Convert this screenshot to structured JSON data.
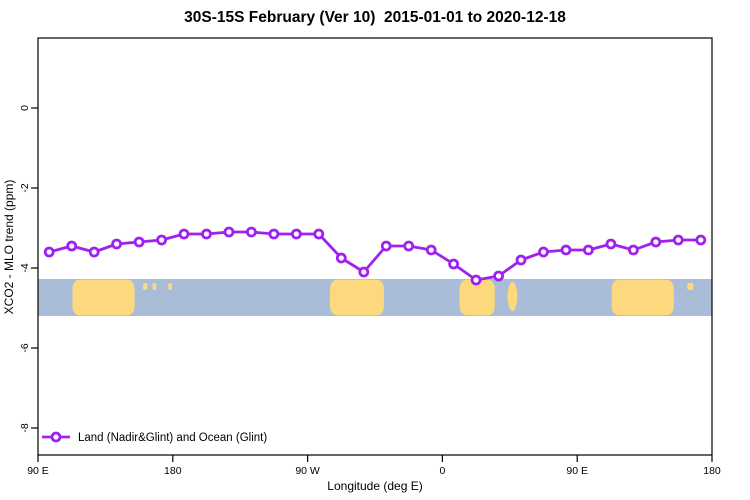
{
  "title": "30S-15S February (Ver 10)  2015-01-01 to 2020-12-18",
  "legend": {
    "label": "Land (Nadir&Glint) and Ocean (Glint)"
  },
  "colors": {
    "line": "#A020F0",
    "marker_fill": "#ffffff",
    "ocean": "#a9bdd9",
    "land": "#fcd97d",
    "axis": "#000000"
  },
  "chart_data": {
    "type": "line",
    "title": "30S-15S February (Ver 10)  2015-01-01 to 2020-12-18",
    "xlabel": "Longitude (deg E)",
    "ylabel": "XCO2 - MLO trend (ppm)",
    "xlim": [
      90,
      540
    ],
    "ylim": [
      -8.675,
      1.75
    ],
    "grid": "off",
    "legend_position": "bottom-left",
    "x_ticks": [
      {
        "value": 90,
        "label": "90 E"
      },
      {
        "value": 180,
        "label": "180"
      },
      {
        "value": 270,
        "label": "90 W"
      },
      {
        "value": 360,
        "label": "0"
      },
      {
        "value": 450,
        "label": "90 E"
      },
      {
        "value": 540,
        "label": "180"
      }
    ],
    "y_ticks": [
      {
        "value": 0,
        "label": "0"
      },
      {
        "value": -2,
        "label": "-2"
      },
      {
        "value": -4,
        "label": "-4"
      },
      {
        "value": -6,
        "label": "-6"
      },
      {
        "value": -8,
        "label": "-8"
      }
    ],
    "series": [
      {
        "name": "Land (Nadir&Glint) and Ocean (Glint)",
        "color": "#A020F0",
        "marker": "open-circle",
        "x": [
          97.5,
          112.5,
          127.5,
          142.5,
          157.5,
          172.5,
          187.5,
          202.5,
          217.5,
          232.5,
          247.5,
          262.5,
          277.5,
          292.5,
          307.5,
          322.5,
          337.5,
          352.5,
          367.5,
          382.5,
          397.5,
          412.5,
          427.5,
          442.5,
          457.5,
          472.5,
          487.5,
          502.5,
          517.5,
          532.5
        ],
        "y": [
          -3.6,
          -3.45,
          -3.6,
          -3.4,
          -3.35,
          -3.3,
          -3.15,
          -3.15,
          -3.1,
          -3.1,
          -3.15,
          -3.15,
          -3.15,
          -3.75,
          -4.1,
          -3.45,
          -3.45,
          -3.55,
          -3.9,
          -4.3,
          -4.2,
          -3.8,
          -3.6,
          -3.55,
          -3.55,
          -3.4,
          -3.55,
          -3.35,
          -3.3,
          -3.3
        ]
      }
    ],
    "map_strip": {
      "description": "30S-15S latitude band: ocean blue with land in tan",
      "ocean_color": "#a9bdd9",
      "land_color": "#fcd97d",
      "y_top": -4.275,
      "y_bottom": -5.2,
      "land_segments": [
        {
          "name": "australia",
          "lon_from": 113,
          "lon_to": 154.5,
          "kind": "blob"
        },
        {
          "name": "coral-sea-islands",
          "lon_from": 160,
          "lon_to": 163,
          "kind": "speck"
        },
        {
          "name": "vanuatu",
          "lon_from": 166.5,
          "lon_to": 169,
          "kind": "speck"
        },
        {
          "name": "fiji",
          "lon_from": 177,
          "lon_to": 179.5,
          "kind": "speck"
        },
        {
          "name": "south-america",
          "lon_from": 285,
          "lon_to": 321,
          "kind": "blob"
        },
        {
          "name": "africa",
          "lon_from": 371.5,
          "lon_to": 395,
          "kind": "blob"
        },
        {
          "name": "madagascar",
          "lon_from": 403.5,
          "lon_to": 410,
          "kind": "tall-island"
        },
        {
          "name": "australia-repeat",
          "lon_from": 473,
          "lon_to": 514.5,
          "kind": "blob"
        },
        {
          "name": "new-caledonia-repeat",
          "lon_from": 523.5,
          "lon_to": 527.5,
          "kind": "speck"
        }
      ]
    }
  }
}
